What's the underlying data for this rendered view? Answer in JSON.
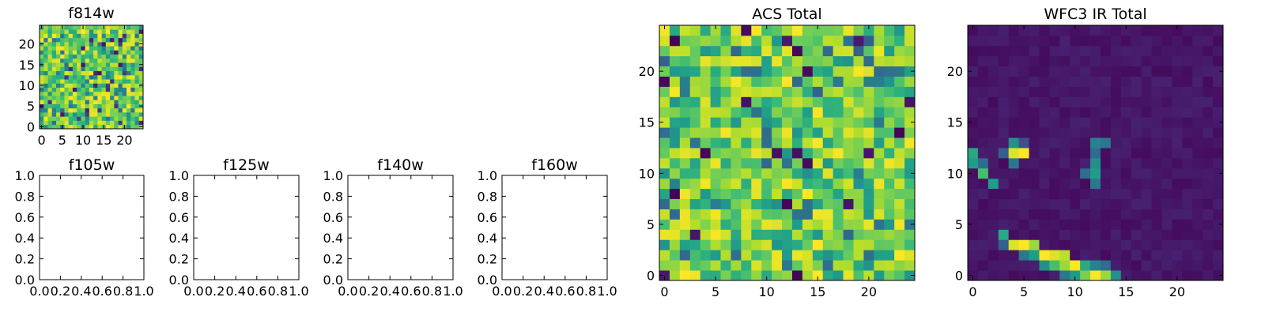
{
  "chart_data": [
    {
      "type": "heatmap",
      "title": "f814w",
      "grid_size": [
        25,
        25
      ],
      "xlim": [
        -0.5,
        24.5
      ],
      "ylim": [
        -0.5,
        24.5
      ],
      "xticks": [
        0,
        5,
        10,
        15,
        20
      ],
      "yticks": [
        0,
        5,
        10,
        15,
        20
      ],
      "colormap": "viridis",
      "values": "pixel-level noise field (approximate)",
      "grid": false
    },
    {
      "type": "heatmap",
      "title": "f105w",
      "empty": true,
      "xlim": [
        0.0,
        1.0
      ],
      "ylim": [
        0.0,
        1.0
      ],
      "xticks": [
        "0.0",
        "0.2",
        "0.4",
        "0.6",
        "0.8",
        "1.0"
      ],
      "yticks": [
        "0.0",
        "0.2",
        "0.4",
        "0.6",
        "0.8",
        "1.0"
      ]
    },
    {
      "type": "heatmap",
      "title": "f125w",
      "empty": true,
      "xlim": [
        0.0,
        1.0
      ],
      "ylim": [
        0.0,
        1.0
      ],
      "xticks": [
        "0.0",
        "0.2",
        "0.4",
        "0.6",
        "0.8",
        "1.0"
      ],
      "yticks": [
        "0.0",
        "0.2",
        "0.4",
        "0.6",
        "0.8",
        "1.0"
      ]
    },
    {
      "type": "heatmap",
      "title": "f140w",
      "empty": true,
      "xlim": [
        0.0,
        1.0
      ],
      "ylim": [
        0.0,
        1.0
      ],
      "xticks": [
        "0.0",
        "0.2",
        "0.4",
        "0.6",
        "0.8",
        "1.0"
      ],
      "yticks": [
        "0.0",
        "0.2",
        "0.4",
        "0.6",
        "0.8",
        "1.0"
      ]
    },
    {
      "type": "heatmap",
      "title": "f160w",
      "empty": true,
      "xlim": [
        0.0,
        1.0
      ],
      "ylim": [
        0.0,
        1.0
      ],
      "xticks": [
        "0.0",
        "0.2",
        "0.4",
        "0.6",
        "0.8",
        "1.0"
      ],
      "yticks": [
        "0.0",
        "0.2",
        "0.4",
        "0.6",
        "0.8",
        "1.0"
      ]
    },
    {
      "type": "heatmap",
      "title": "ACS Total",
      "grid_size": [
        25,
        25
      ],
      "xlim": [
        -0.5,
        24.5
      ],
      "ylim": [
        -0.5,
        24.5
      ],
      "xticks": [
        0,
        5,
        10,
        15,
        20
      ],
      "yticks": [
        0,
        5,
        10,
        15,
        20
      ],
      "colormap": "viridis",
      "values": "pixel-level noise field, mostly high values (approximate)",
      "grid": false
    },
    {
      "type": "heatmap",
      "title": "WFC3 IR Total",
      "grid_size": [
        25,
        25
      ],
      "xlim": [
        -0.5,
        24.5
      ],
      "ylim": [
        -0.5,
        24.5
      ],
      "xticks": [
        0,
        5,
        10,
        15,
        20
      ],
      "yticks": [
        0,
        5,
        10,
        15,
        20
      ],
      "colormap": "viridis",
      "background_level": 0.06,
      "bright_pixels": [
        {
          "x": 0,
          "y": 12,
          "v": 0.6
        },
        {
          "x": 0,
          "y": 11,
          "v": 0.55
        },
        {
          "x": 1,
          "y": 10,
          "v": 0.7
        },
        {
          "x": 1,
          "y": 11,
          "v": 0.35
        },
        {
          "x": 2,
          "y": 9,
          "v": 0.55
        },
        {
          "x": 3,
          "y": 12,
          "v": 0.3
        },
        {
          "x": 4,
          "y": 13,
          "v": 0.5
        },
        {
          "x": 4,
          "y": 12,
          "v": 0.95
        },
        {
          "x": 4,
          "y": 11,
          "v": 0.4
        },
        {
          "x": 5,
          "y": 12,
          "v": 1.0
        },
        {
          "x": 5,
          "y": 13,
          "v": 0.25
        },
        {
          "x": 11,
          "y": 10,
          "v": 0.35
        },
        {
          "x": 12,
          "y": 11,
          "v": 0.5
        },
        {
          "x": 12,
          "y": 10,
          "v": 0.55
        },
        {
          "x": 12,
          "y": 9,
          "v": 0.4
        },
        {
          "x": 12,
          "y": 13,
          "v": 0.45
        },
        {
          "x": 12,
          "y": 12,
          "v": 0.35
        },
        {
          "x": 13,
          "y": 13,
          "v": 0.4
        },
        {
          "x": 3,
          "y": 4,
          "v": 0.6
        },
        {
          "x": 3,
          "y": 3,
          "v": 0.3
        },
        {
          "x": 4,
          "y": 3,
          "v": 0.95
        },
        {
          "x": 5,
          "y": 3,
          "v": 1.0
        },
        {
          "x": 6,
          "y": 3,
          "v": 0.85
        },
        {
          "x": 5,
          "y": 2,
          "v": 0.4
        },
        {
          "x": 6,
          "y": 2,
          "v": 0.55
        },
        {
          "x": 7,
          "y": 2,
          "v": 1.0
        },
        {
          "x": 8,
          "y": 2,
          "v": 0.95
        },
        {
          "x": 9,
          "y": 2,
          "v": 0.9
        },
        {
          "x": 7,
          "y": 1,
          "v": 0.5
        },
        {
          "x": 8,
          "y": 1,
          "v": 0.7
        },
        {
          "x": 9,
          "y": 1,
          "v": 0.85
        },
        {
          "x": 10,
          "y": 1,
          "v": 1.0
        },
        {
          "x": 11,
          "y": 1,
          "v": 0.6
        },
        {
          "x": 12,
          "y": 1,
          "v": 0.45
        },
        {
          "x": 13,
          "y": 1,
          "v": 0.35
        },
        {
          "x": 9,
          "y": 0,
          "v": 0.4
        },
        {
          "x": 10,
          "y": 0,
          "v": 0.55
        },
        {
          "x": 11,
          "y": 0,
          "v": 0.8
        },
        {
          "x": 12,
          "y": 0,
          "v": 1.0
        },
        {
          "x": 13,
          "y": 0,
          "v": 0.85
        },
        {
          "x": 14,
          "y": 0,
          "v": 0.5
        }
      ],
      "grid": false
    }
  ]
}
